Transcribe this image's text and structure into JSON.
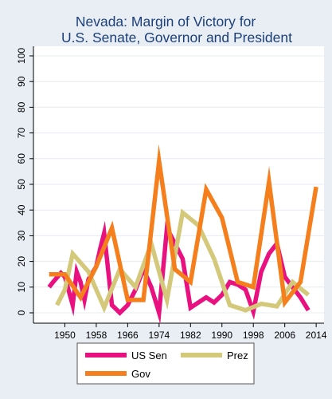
{
  "chart_data": {
    "type": "line",
    "title": [
      "Nevada: Margin of Victory for",
      "U.S. Senate, Governor and President"
    ],
    "xlabel": "",
    "ylabel": "",
    "xlim": [
      1942,
      2016
    ],
    "ylim": [
      0,
      100
    ],
    "x_ticks": [
      1950,
      1958,
      1966,
      1974,
      1982,
      1990,
      1998,
      2006,
      2014
    ],
    "y_ticks": [
      0,
      10,
      20,
      30,
      40,
      50,
      60,
      70,
      80,
      90,
      100
    ],
    "grid": "horizontal",
    "legend_position": "bottom",
    "series": [
      {
        "name": "US Sen",
        "color": "#e8117f",
        "points": [
          [
            1946,
            10
          ],
          [
            1947,
            12
          ],
          [
            1949,
            15.5
          ],
          [
            1950,
            14
          ],
          [
            1952,
            3
          ],
          [
            1953,
            16
          ],
          [
            1954,
            12
          ],
          [
            1955,
            5
          ],
          [
            1956,
            13
          ],
          [
            1958,
            18
          ],
          [
            1959,
            25
          ],
          [
            1960,
            31
          ],
          [
            1962,
            3
          ],
          [
            1964,
            0
          ],
          [
            1966,
            3
          ],
          [
            1968,
            9
          ],
          [
            1970,
            17
          ],
          [
            1972,
            10
          ],
          [
            1974,
            0
          ],
          [
            1976,
            33
          ],
          [
            1980,
            21
          ],
          [
            1982,
            2
          ],
          [
            1984,
            4
          ],
          [
            1986,
            6
          ],
          [
            1988,
            4
          ],
          [
            1990,
            7
          ],
          [
            1992,
            12
          ],
          [
            1994,
            11
          ],
          [
            1996,
            9
          ],
          [
            1998,
            0.5
          ],
          [
            2000,
            16
          ],
          [
            2002,
            23
          ],
          [
            2004,
            27
          ],
          [
            2006,
            14
          ],
          [
            2008,
            10
          ],
          [
            2010,
            6
          ],
          [
            2012,
            1
          ]
        ]
      },
      {
        "name": "Prez",
        "color": "#d4c87a",
        "points": [
          [
            1948,
            3
          ],
          [
            1950,
            9
          ],
          [
            1952,
            23
          ],
          [
            1956,
            16
          ],
          [
            1960,
            2
          ],
          [
            1964,
            17
          ],
          [
            1968,
            10
          ],
          [
            1972,
            27
          ],
          [
            1976,
            5
          ],
          [
            1980,
            39
          ],
          [
            1984,
            34
          ],
          [
            1988,
            21
          ],
          [
            1992,
            3
          ],
          [
            1996,
            1
          ],
          [
            2000,
            3.5
          ],
          [
            2004,
            2.5
          ],
          [
            2008,
            12
          ],
          [
            2012,
            7
          ]
        ]
      },
      {
        "name": "Gov",
        "color": "#f47f1c",
        "points": [
          [
            1946,
            15
          ],
          [
            1948,
            15
          ],
          [
            1950,
            15
          ],
          [
            1954,
            6
          ],
          [
            1958,
            18
          ],
          [
            1962,
            33
          ],
          [
            1966,
            5
          ],
          [
            1970,
            5
          ],
          [
            1974,
            59
          ],
          [
            1978,
            17
          ],
          [
            1982,
            12
          ],
          [
            1986,
            48
          ],
          [
            1990,
            37
          ],
          [
            1994,
            12
          ],
          [
            1998,
            10
          ],
          [
            2002,
            51
          ],
          [
            2006,
            4
          ],
          [
            2010,
            12
          ],
          [
            2014,
            49
          ]
        ]
      }
    ]
  }
}
